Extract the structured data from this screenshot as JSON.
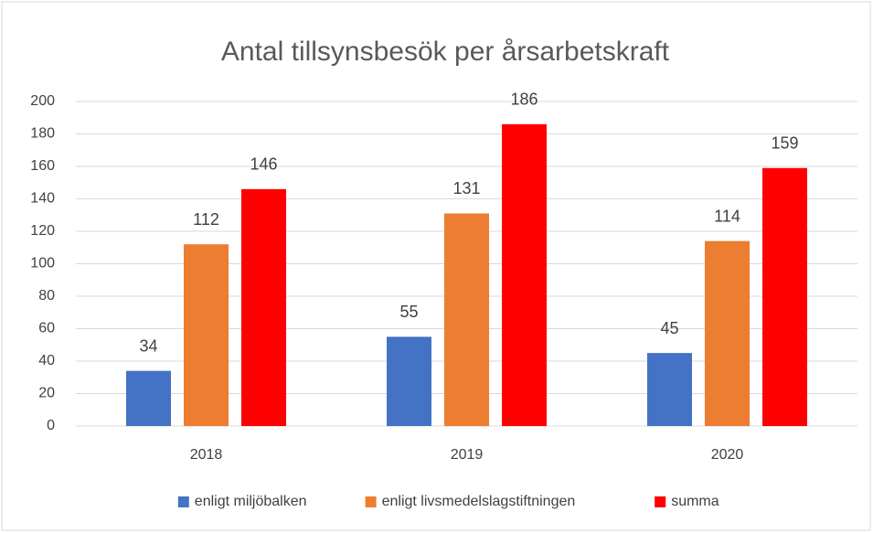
{
  "chart_data": {
    "type": "bar",
    "title": "Antal tillsynsbesök per årsarbetskraft",
    "categories": [
      "2018",
      "2019",
      "2020"
    ],
    "series": [
      {
        "name": "enligt miljöbalken",
        "color": "#4472c4",
        "values": [
          34,
          55,
          45
        ]
      },
      {
        "name": "enligt livsmedelslagstiftningen",
        "color": "#ed7d31",
        "values": [
          112,
          131,
          114
        ]
      },
      {
        "name": "summa",
        "color": "#ff0000",
        "values": [
          146,
          186,
          159
        ]
      }
    ],
    "ylim": [
      0,
      200
    ],
    "yticks": [
      0,
      20,
      40,
      60,
      80,
      100,
      120,
      140,
      160,
      180,
      200
    ],
    "grid": true,
    "legend": "bottom"
  }
}
